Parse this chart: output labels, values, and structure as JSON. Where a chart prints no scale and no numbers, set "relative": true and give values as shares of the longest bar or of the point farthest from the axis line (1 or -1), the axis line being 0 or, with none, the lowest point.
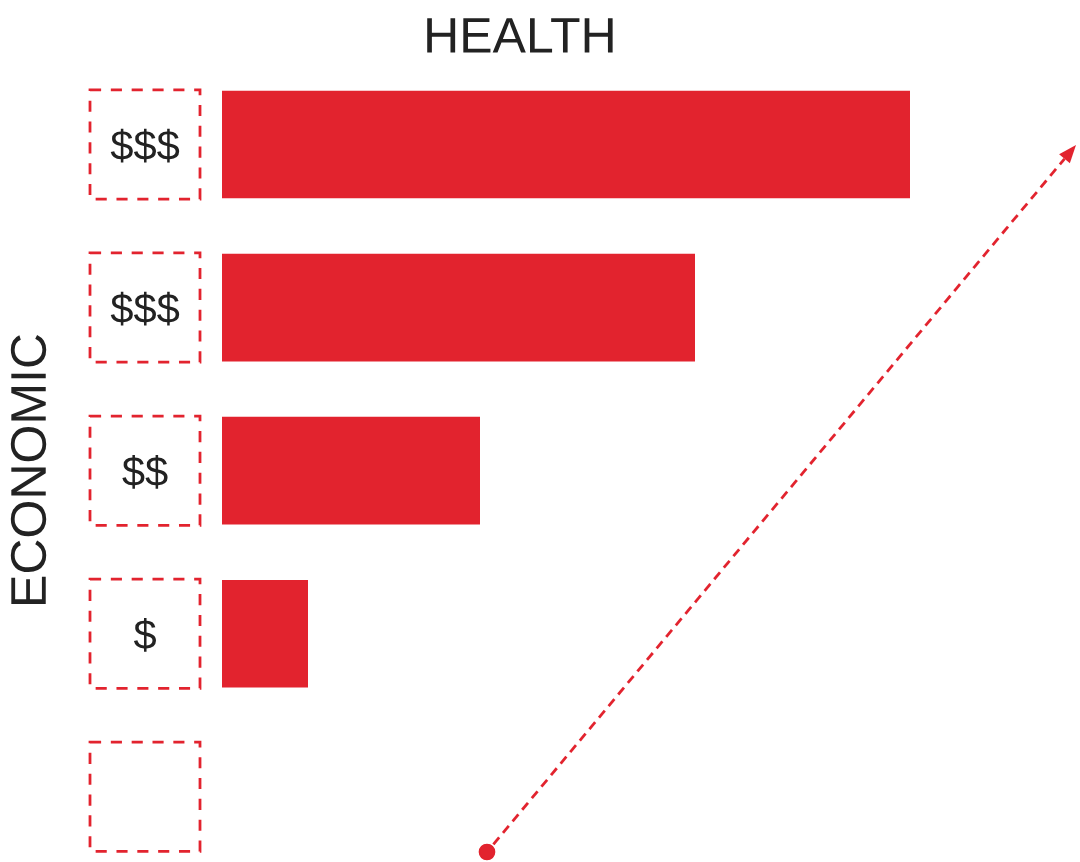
{
  "chart_data": {
    "type": "bar",
    "orientation": "horizontal",
    "relative": true,
    "title": "HEALTH",
    "ylabel": "ECONOMIC",
    "categories": [
      "$$$",
      "$$$",
      "$$",
      "$",
      null
    ],
    "values": [
      1,
      0.6875,
      0.375,
      0.125,
      0
    ],
    "color": "#e2232e"
  }
}
